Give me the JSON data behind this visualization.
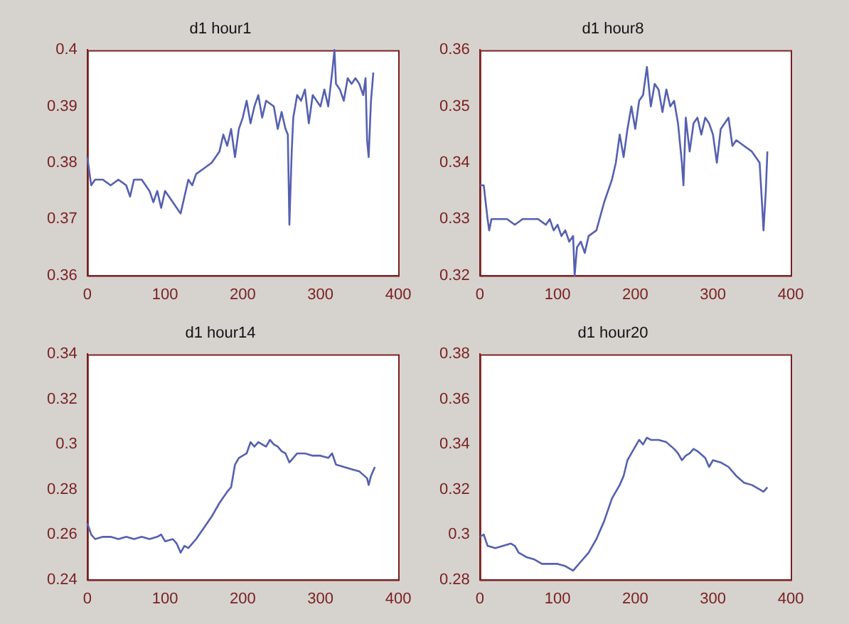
{
  "chart_data": [
    {
      "type": "line",
      "title": "d1 hour1",
      "xlim": [
        0,
        400
      ],
      "xticks": [
        0,
        100,
        200,
        300,
        400
      ],
      "ylim": [
        0.36,
        0.4
      ],
      "yticks": [
        0.36,
        0.37,
        0.38,
        0.39,
        0.4
      ],
      "series": [
        {
          "color": "#5560b0",
          "x": [
            0,
            5,
            10,
            20,
            30,
            40,
            50,
            55,
            60,
            70,
            80,
            85,
            90,
            95,
            100,
            105,
            110,
            115,
            120,
            125,
            130,
            135,
            140,
            150,
            160,
            170,
            175,
            180,
            185,
            190,
            195,
            200,
            205,
            210,
            215,
            220,
            225,
            230,
            240,
            245,
            250,
            255,
            258,
            260,
            263,
            265,
            270,
            275,
            280,
            285,
            290,
            300,
            305,
            310,
            315,
            318,
            320,
            325,
            330,
            335,
            340,
            345,
            350,
            355,
            358,
            360,
            362,
            365,
            368
          ],
          "values": [
            0.381,
            0.376,
            0.377,
            0.377,
            0.376,
            0.377,
            0.376,
            0.374,
            0.377,
            0.377,
            0.375,
            0.373,
            0.375,
            0.372,
            0.375,
            0.374,
            0.373,
            0.372,
            0.371,
            0.374,
            0.377,
            0.376,
            0.378,
            0.379,
            0.38,
            0.382,
            0.385,
            0.383,
            0.386,
            0.381,
            0.386,
            0.388,
            0.391,
            0.387,
            0.39,
            0.392,
            0.388,
            0.391,
            0.39,
            0.386,
            0.389,
            0.386,
            0.385,
            0.369,
            0.382,
            0.388,
            0.392,
            0.391,
            0.393,
            0.387,
            0.392,
            0.39,
            0.393,
            0.39,
            0.396,
            0.4,
            0.394,
            0.393,
            0.391,
            0.395,
            0.394,
            0.395,
            0.394,
            0.392,
            0.395,
            0.384,
            0.381,
            0.391,
            0.396
          ]
        }
      ]
    },
    {
      "type": "line",
      "title": "d1 hour8",
      "xlim": [
        0,
        400
      ],
      "xticks": [
        0,
        100,
        200,
        300,
        400
      ],
      "ylim": [
        0.32,
        0.36
      ],
      "yticks": [
        0.32,
        0.33,
        0.34,
        0.35,
        0.36
      ],
      "series": [
        {
          "color": "#5560b0",
          "x": [
            0,
            5,
            10,
            12,
            15,
            25,
            35,
            45,
            55,
            65,
            75,
            85,
            90,
            95,
            100,
            105,
            110,
            115,
            120,
            122,
            125,
            130,
            135,
            140,
            150,
            160,
            170,
            175,
            180,
            185,
            190,
            195,
            200,
            205,
            210,
            215,
            220,
            225,
            230,
            235,
            240,
            245,
            250,
            255,
            260,
            262,
            265,
            270,
            275,
            280,
            285,
            290,
            295,
            300,
            305,
            310,
            315,
            320,
            325,
            330,
            340,
            350,
            355,
            360,
            363,
            365,
            368,
            370
          ],
          "values": [
            0.336,
            0.336,
            0.33,
            0.328,
            0.33,
            0.33,
            0.33,
            0.329,
            0.33,
            0.33,
            0.33,
            0.329,
            0.33,
            0.328,
            0.329,
            0.327,
            0.328,
            0.326,
            0.327,
            0.32,
            0.325,
            0.326,
            0.324,
            0.327,
            0.328,
            0.333,
            0.337,
            0.34,
            0.345,
            0.341,
            0.346,
            0.35,
            0.346,
            0.351,
            0.352,
            0.357,
            0.35,
            0.354,
            0.353,
            0.349,
            0.353,
            0.35,
            0.351,
            0.347,
            0.34,
            0.336,
            0.348,
            0.342,
            0.347,
            0.348,
            0.345,
            0.348,
            0.347,
            0.345,
            0.34,
            0.346,
            0.347,
            0.348,
            0.343,
            0.344,
            0.343,
            0.342,
            0.341,
            0.34,
            0.333,
            0.328,
            0.335,
            0.342
          ]
        }
      ]
    },
    {
      "type": "line",
      "title": "d1 hour14",
      "xlim": [
        0,
        400
      ],
      "xticks": [
        0,
        100,
        200,
        300,
        400
      ],
      "ylim": [
        0.24,
        0.34
      ],
      "yticks": [
        0.24,
        0.26,
        0.28,
        0.3,
        0.32,
        0.34
      ],
      "series": [
        {
          "color": "#5560b0",
          "x": [
            0,
            5,
            10,
            20,
            30,
            40,
            50,
            60,
            70,
            80,
            90,
            95,
            100,
            110,
            115,
            120,
            125,
            130,
            140,
            150,
            160,
            170,
            180,
            185,
            190,
            195,
            200,
            205,
            210,
            215,
            220,
            230,
            235,
            240,
            245,
            250,
            255,
            260,
            265,
            270,
            280,
            290,
            300,
            310,
            315,
            320,
            330,
            340,
            350,
            360,
            362,
            365,
            370
          ],
          "values": [
            0.265,
            0.26,
            0.258,
            0.259,
            0.259,
            0.258,
            0.259,
            0.258,
            0.259,
            0.258,
            0.259,
            0.26,
            0.257,
            0.258,
            0.256,
            0.252,
            0.255,
            0.254,
            0.258,
            0.263,
            0.268,
            0.274,
            0.279,
            0.281,
            0.291,
            0.294,
            0.295,
            0.296,
            0.301,
            0.299,
            0.301,
            0.299,
            0.302,
            0.3,
            0.299,
            0.297,
            0.296,
            0.292,
            0.294,
            0.296,
            0.296,
            0.295,
            0.295,
            0.294,
            0.296,
            0.291,
            0.29,
            0.289,
            0.288,
            0.285,
            0.282,
            0.286,
            0.29
          ]
        }
      ]
    },
    {
      "type": "line",
      "title": "d1 hour20",
      "xlim": [
        0,
        400
      ],
      "xticks": [
        0,
        100,
        200,
        300,
        400
      ],
      "ylim": [
        0.28,
        0.38
      ],
      "yticks": [
        0.28,
        0.3,
        0.32,
        0.34,
        0.36,
        0.38
      ],
      "series": [
        {
          "color": "#5560b0",
          "x": [
            0,
            5,
            10,
            20,
            30,
            40,
            45,
            50,
            60,
            70,
            80,
            90,
            100,
            110,
            120,
            125,
            130,
            140,
            150,
            160,
            170,
            180,
            185,
            190,
            195,
            200,
            205,
            210,
            215,
            220,
            230,
            240,
            250,
            255,
            260,
            265,
            270,
            275,
            280,
            290,
            295,
            300,
            310,
            320,
            330,
            340,
            350,
            360,
            365,
            370
          ],
          "values": [
            0.299,
            0.3,
            0.295,
            0.294,
            0.295,
            0.296,
            0.295,
            0.292,
            0.29,
            0.289,
            0.287,
            0.287,
            0.287,
            0.286,
            0.284,
            0.286,
            0.288,
            0.292,
            0.298,
            0.306,
            0.316,
            0.322,
            0.326,
            0.333,
            0.336,
            0.339,
            0.342,
            0.34,
            0.343,
            0.342,
            0.342,
            0.341,
            0.338,
            0.336,
            0.333,
            0.335,
            0.336,
            0.338,
            0.337,
            0.334,
            0.33,
            0.333,
            0.332,
            0.33,
            0.326,
            0.323,
            0.322,
            0.32,
            0.319,
            0.321
          ]
        }
      ]
    }
  ]
}
